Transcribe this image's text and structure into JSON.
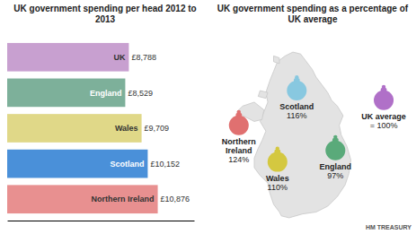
{
  "chart_data": [
    {
      "type": "bar",
      "orientation": "horizontal",
      "title": "UK government spending per head 2012 to 2013",
      "categories": [
        "UK",
        "England",
        "Wales",
        "Scotland",
        "Northern Ireland"
      ],
      "values": [
        8788,
        8529,
        9709,
        10152,
        10876
      ],
      "value_labels": [
        "£8,788",
        "£8,529",
        "£9,709",
        "£10,152",
        "£10,876"
      ],
      "colors": [
        "#c8a0d0",
        "#7db09a",
        "#e0d888",
        "#4a90d9",
        "#e89090"
      ],
      "xlim": [
        0,
        13500
      ],
      "data_labels": true,
      "tick_labels": false,
      "grid": false
    },
    {
      "type": "map",
      "title": "UK government spending as a percentage of UK average",
      "categories": [
        "Scotland",
        "Northern\nIreland",
        "Wales",
        "England",
        "UK average"
      ],
      "values": [
        116,
        124,
        110,
        97,
        100
      ],
      "value_labels": [
        "116%",
        "124%",
        "110%",
        "97%",
        "= 100%"
      ],
      "colors": [
        "#88c8e0",
        "#e07070",
        "#d4c840",
        "#5aaa7a",
        "#b070c8"
      ],
      "data_labels": true,
      "annotations": [
        "HM TREASURY"
      ]
    }
  ]
}
